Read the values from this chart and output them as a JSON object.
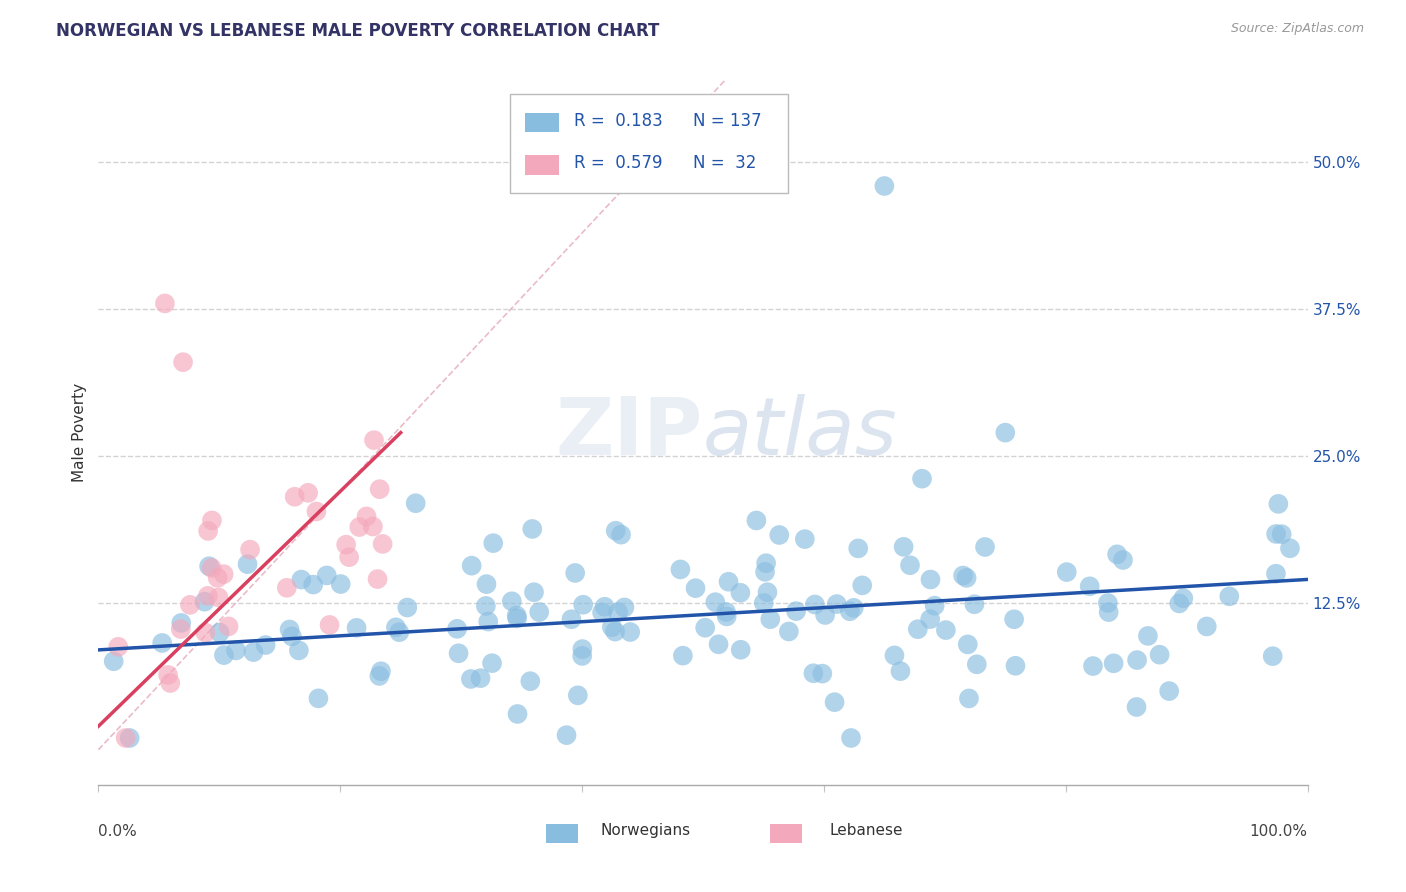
{
  "title": "NORWEGIAN VS LEBANESE MALE POVERTY CORRELATION CHART",
  "source_text": "Source: ZipAtlas.com",
  "ylabel": "Male Poverty",
  "watermark_text": "ZIPatlas",
  "xlim": [
    0,
    100
  ],
  "ylim": [
    -3,
    57
  ],
  "yticks": [
    0,
    12.5,
    25.0,
    37.5,
    50.0
  ],
  "ytick_labels": [
    "",
    "12.5%",
    "25.0%",
    "37.5%",
    "50.0%"
  ],
  "norwegian_color": "#89bde0",
  "lebanese_color": "#f4a8bb",
  "norwegian_trend_color": "#2255aa",
  "lebanese_trend_color": "#d94060",
  "diag_line_color": "#e8b4c0",
  "grid_color": "#c8c8c8",
  "title_color": "#333366",
  "background_color": "#ffffff",
  "legend_text_color": "#2255aa",
  "legend_n_color": "#2255aa",
  "title_fontsize": 12,
  "axis_label_fontsize": 11,
  "tick_label_fontsize": 11,
  "nor_trend_start_x": 0,
  "nor_trend_end_x": 100,
  "nor_trend_start_y": 8.5,
  "nor_trend_end_y": 14.5,
  "leb_trend_start_x": 0,
  "leb_trend_end_x": 25,
  "leb_trend_start_y": 2,
  "leb_trend_end_y": 27
}
